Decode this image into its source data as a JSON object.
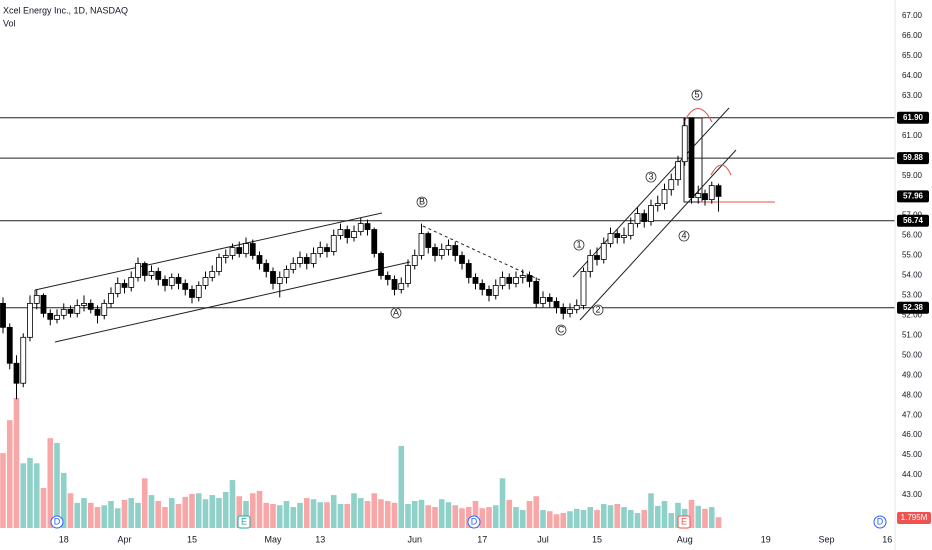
{
  "chart_data": {
    "type": "candlestick",
    "title": "Xcel Energy Inc., 1D, NASDAQ",
    "volume_title": "Vol",
    "up_color": "#ffffff",
    "down_color": "#000000",
    "volume_up_color": "#8fd1c8",
    "volume_down_color": "#f7a7a7",
    "ylim": [
      43,
      67
    ],
    "yticks": [
      {
        "value": 43,
        "label": "43.00"
      },
      {
        "value": 44,
        "label": "44.00"
      },
      {
        "value": 45,
        "label": "45.00"
      },
      {
        "value": 46,
        "label": "46.00"
      },
      {
        "value": 47,
        "label": "47.00"
      },
      {
        "value": 48,
        "label": "48.00"
      },
      {
        "value": 49,
        "label": "49.00"
      },
      {
        "value": 50,
        "label": "50.00"
      },
      {
        "value": 51,
        "label": "51.00"
      },
      {
        "value": 52,
        "label": "52.00"
      },
      {
        "value": 53,
        "label": "53.00"
      },
      {
        "value": 54,
        "label": "54.00"
      },
      {
        "value": 55,
        "label": "55.00"
      },
      {
        "value": 56,
        "label": "56.00"
      },
      {
        "value": 57,
        "label": "57.00"
      },
      {
        "value": 58,
        "label": "58.00"
      },
      {
        "value": 59,
        "label": "59.00"
      },
      {
        "value": 60,
        "label": "60.00"
      },
      {
        "value": 61,
        "label": "61.00"
      },
      {
        "value": 62,
        "label": "62.00"
      },
      {
        "value": 63,
        "label": "63.00"
      },
      {
        "value": 64,
        "label": "64.00"
      },
      {
        "value": 65,
        "label": "65.00"
      },
      {
        "value": 66,
        "label": "66.00"
      },
      {
        "value": 67,
        "label": "67.00"
      }
    ],
    "xticks": [
      {
        "value": 9,
        "label": "18"
      },
      {
        "value": 18,
        "label": "Apr"
      },
      {
        "value": 28,
        "label": "15"
      },
      {
        "value": 40,
        "label": "May"
      },
      {
        "value": 47,
        "label": "13"
      },
      {
        "value": 61,
        "label": "Jun"
      },
      {
        "value": 71,
        "label": "17"
      },
      {
        "value": 80,
        "label": "Jul"
      },
      {
        "value": 88,
        "label": "15"
      },
      {
        "value": 101,
        "label": "Aug"
      },
      {
        "value": 113,
        "label": "19"
      },
      {
        "value": 122,
        "label": "Sep"
      },
      {
        "value": 131,
        "label": "16"
      }
    ],
    "levels": [
      {
        "value": 61.9,
        "label": "61.90"
      },
      {
        "value": 59.88,
        "label": "59.88"
      },
      {
        "value": 56.74,
        "label": "56.74"
      },
      {
        "value": 52.38,
        "label": "52.38"
      }
    ],
    "last_price": {
      "value": 57.96,
      "label": "57.96"
    },
    "last_volume": {
      "value": 1.795,
      "label": "1.795M"
    },
    "annotations": [
      "1",
      "2",
      "3",
      "4",
      "5",
      "A",
      "B",
      "C"
    ],
    "events": [
      "D",
      "E",
      "D",
      "E",
      "D"
    ],
    "open": [
      52.6,
      51.4,
      49.6,
      48.6,
      50.9,
      52.6,
      53.0,
      52.1,
      51.8,
      52.0,
      52.3,
      52.1,
      52.5,
      52.6,
      52.3,
      52.0,
      52.6,
      53.1,
      53.6,
      53.4,
      53.9,
      54.6,
      54.0,
      54.2,
      53.8,
      53.5,
      53.9,
      53.6,
      53.3,
      52.9,
      53.5,
      53.9,
      54.2,
      54.9,
      55.0,
      55.4,
      55.1,
      55.6,
      55.0,
      54.6,
      54.2,
      53.6,
      53.9,
      54.3,
      54.6,
      54.9,
      54.6,
      55.1,
      55.4,
      55.2,
      56.0,
      56.3,
      55.9,
      56.2,
      56.6,
      56.3,
      55.1,
      54.0,
      53.8,
      53.3,
      53.6,
      54.5,
      55.0,
      56.1,
      55.4,
      55.0,
      55.3,
      55.5,
      55.0,
      54.6,
      53.9,
      53.6,
      53.3,
      53.0,
      53.5,
      53.9,
      53.6,
      53.9,
      54.0,
      53.7,
      52.6,
      52.9,
      52.7,
      52.4,
      52.1,
      52.3,
      52.5,
      54.2,
      55.0,
      54.8,
      55.6,
      56.1,
      55.9,
      56.0,
      56.6,
      57.1,
      56.7,
      57.5,
      57.6,
      58.3,
      58.8,
      59.7,
      61.9,
      57.9,
      58.1,
      57.8,
      58.5
    ],
    "high": [
      52.9,
      51.6,
      50.0,
      51.1,
      53.0,
      53.3,
      53.1,
      52.3,
      52.3,
      52.6,
      52.5,
      52.8,
      53.0,
      52.8,
      52.5,
      52.8,
      53.4,
      53.9,
      53.8,
      54.2,
      54.9,
      54.7,
      54.5,
      54.4,
      54.0,
      54.1,
      54.1,
      53.8,
      53.5,
      53.7,
      54.2,
      54.5,
      55.1,
      55.3,
      55.6,
      55.7,
      55.9,
      55.8,
      55.2,
      54.8,
      54.4,
      54.2,
      54.5,
      54.9,
      55.2,
      55.1,
      55.4,
      55.7,
      55.6,
      56.3,
      56.6,
      56.5,
      56.5,
      56.9,
      56.8,
      56.4,
      55.2,
      54.2,
      54.0,
      53.9,
      54.8,
      55.3,
      56.6,
      56.2,
      55.6,
      55.6,
      55.8,
      55.7,
      55.2,
      54.8,
      54.1,
      53.8,
      53.5,
      53.8,
      54.2,
      54.1,
      54.2,
      54.3,
      54.2,
      53.9,
      53.2,
      53.1,
      52.9,
      52.6,
      52.6,
      52.8,
      54.4,
      55.3,
      55.4,
      55.9,
      56.4,
      56.3,
      56.4,
      56.9,
      57.4,
      57.3,
      57.8,
      58.0,
      58.6,
      59.1,
      60.0,
      61.9,
      61.9,
      58.5,
      58.3,
      58.7,
      58.6
    ],
    "low": [
      51.1,
      49.3,
      47.8,
      48.4,
      50.7,
      52.3,
      51.9,
      51.5,
      51.6,
      51.8,
      51.9,
      51.9,
      52.2,
      52.1,
      51.6,
      51.8,
      52.4,
      52.9,
      53.1,
      53.2,
      53.7,
      53.7,
      53.8,
      53.5,
      53.2,
      53.3,
      53.3,
      53.0,
      52.6,
      52.7,
      53.3,
      53.7,
      54.0,
      54.6,
      54.8,
      54.9,
      54.9,
      54.8,
      54.3,
      53.9,
      53.3,
      52.9,
      53.6,
      54.1,
      54.4,
      54.3,
      54.4,
      54.9,
      54.9,
      55.0,
      55.8,
      55.6,
      55.7,
      56.0,
      56.0,
      54.9,
      53.8,
      53.5,
      53.0,
      53.1,
      53.4,
      54.3,
      54.8,
      55.1,
      54.7,
      54.8,
      55.0,
      54.7,
      54.3,
      53.6,
      53.3,
      53.0,
      52.7,
      52.8,
      53.3,
      53.3,
      53.4,
      53.6,
      53.4,
      52.4,
      52.4,
      52.4,
      52.1,
      51.8,
      51.9,
      52.1,
      52.3,
      53.9,
      54.5,
      54.6,
      55.4,
      55.6,
      55.6,
      55.8,
      56.4,
      56.4,
      56.5,
      57.2,
      57.3,
      58.0,
      58.5,
      59.5,
      57.6,
      57.6,
      57.5,
      57.6,
      57.2
    ],
    "close": [
      51.4,
      49.6,
      48.6,
      50.9,
      52.6,
      53.0,
      52.1,
      51.8,
      52.0,
      52.3,
      52.1,
      52.5,
      52.6,
      52.3,
      52.0,
      52.6,
      53.1,
      53.6,
      53.4,
      53.9,
      54.6,
      54.0,
      54.2,
      53.8,
      53.5,
      53.9,
      53.6,
      53.3,
      52.9,
      53.5,
      53.9,
      54.2,
      54.9,
      55.0,
      55.4,
      55.1,
      55.6,
      55.0,
      54.6,
      54.2,
      53.6,
      53.9,
      54.3,
      54.6,
      54.9,
      54.6,
      55.1,
      55.4,
      55.2,
      56.0,
      56.3,
      55.9,
      56.2,
      56.6,
      56.3,
      55.1,
      54.0,
      53.8,
      53.3,
      53.6,
      54.5,
      55.0,
      56.1,
      55.4,
      55.0,
      55.3,
      55.5,
      55.0,
      54.6,
      53.9,
      53.6,
      53.3,
      53.0,
      53.5,
      53.9,
      53.6,
      53.9,
      54.0,
      53.7,
      52.6,
      52.9,
      52.7,
      52.4,
      52.1,
      52.3,
      52.5,
      54.2,
      55.0,
      54.8,
      55.6,
      56.1,
      55.9,
      56.0,
      56.6,
      57.1,
      56.7,
      57.5,
      57.6,
      58.3,
      58.8,
      59.7,
      61.5,
      57.9,
      58.1,
      57.8,
      58.5,
      57.96
    ],
    "volume": [
      12.5,
      18,
      21.7,
      10.8,
      11.7,
      10.8,
      6.7,
      15,
      14.2,
      9.2,
      5.8,
      4.2,
      5,
      4.2,
      3.5,
      3.8,
      4.5,
      3.3,
      4.7,
      5,
      4.2,
      8.3,
      5.5,
      4.5,
      3.5,
      5,
      4,
      5.2,
      5.7,
      5.8,
      4.8,
      5.5,
      5,
      6,
      8,
      5.3,
      4.5,
      5.8,
      6.2,
      4.2,
      4,
      3.8,
      4.5,
      3.5,
      4.2,
      5,
      4.8,
      4.3,
      4.3,
      5.5,
      4,
      4,
      5.8,
      5,
      4.5,
      5.8,
      4.8,
      4.5,
      4.2,
      13.7,
      4,
      4.5,
      4.7,
      3.8,
      3.5,
      4.8,
      4.3,
      3.8,
      3.3,
      3.5,
      4.5,
      3.3,
      3.5,
      3.8,
      8.3,
      4.7,
      3.5,
      3,
      4.5,
      5.3,
      3,
      2.8,
      2.3,
      2.5,
      2.8,
      3.2,
      3,
      3.5,
      3,
      4,
      3.8,
      4,
      3.5,
      3,
      2.5,
      3,
      5.8,
      3.7,
      4.5,
      2.5,
      4.2,
      3.2,
      4.7,
      3.7,
      3.2,
      3.5,
      1.795
    ]
  }
}
